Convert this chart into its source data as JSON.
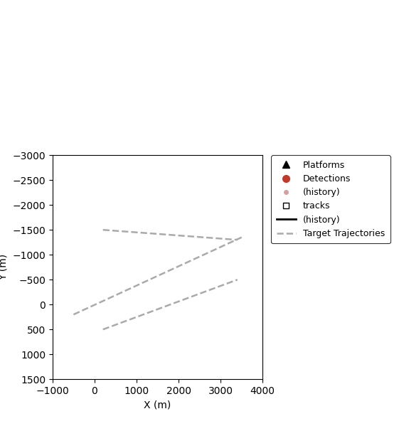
{
  "title": "",
  "xlabel": "X (m)",
  "ylabel": "Y (m)",
  "xlim": [
    -1000,
    4000
  ],
  "ylim": [
    1500,
    -3000
  ],
  "trajectory_color": "#aaaaaa",
  "trajectory_linestyle": "--",
  "trajectory_linewidth": 1.8,
  "trajectories": [
    {
      "x": [
        -500,
        3500
      ],
      "y": [
        200,
        -1350
      ]
    },
    {
      "x": [
        200,
        3400
      ],
      "y": [
        500,
        -500
      ]
    },
    {
      "x": [
        200,
        3400
      ],
      "y": [
        -1500,
        -1300
      ]
    }
  ],
  "legend_entries": [
    {
      "label": "Platforms",
      "type": "marker",
      "marker": "^",
      "color": "black",
      "markersize": 7
    },
    {
      "label": "Detections",
      "type": "marker",
      "marker": "o",
      "color": "#c0392b",
      "markersize": 7
    },
    {
      "label": "(history)",
      "type": "marker",
      "marker": "o",
      "color": "#d4a0a0",
      "markersize": 4
    },
    {
      "label": "tracks",
      "type": "marker",
      "marker": "s",
      "color": "white",
      "edgecolor": "black",
      "markersize": 6
    },
    {
      "label": "(history)",
      "type": "line",
      "color": "black",
      "linestyle": "-",
      "linewidth": 2
    },
    {
      "label": "Target Trajectories",
      "type": "line",
      "color": "#aaaaaa",
      "linestyle": "--",
      "linewidth": 1.8
    }
  ],
  "figure_bg": "#ffffff",
  "axes_bg": "#ffffff",
  "font_size": 10,
  "legend_fontsize": 9
}
